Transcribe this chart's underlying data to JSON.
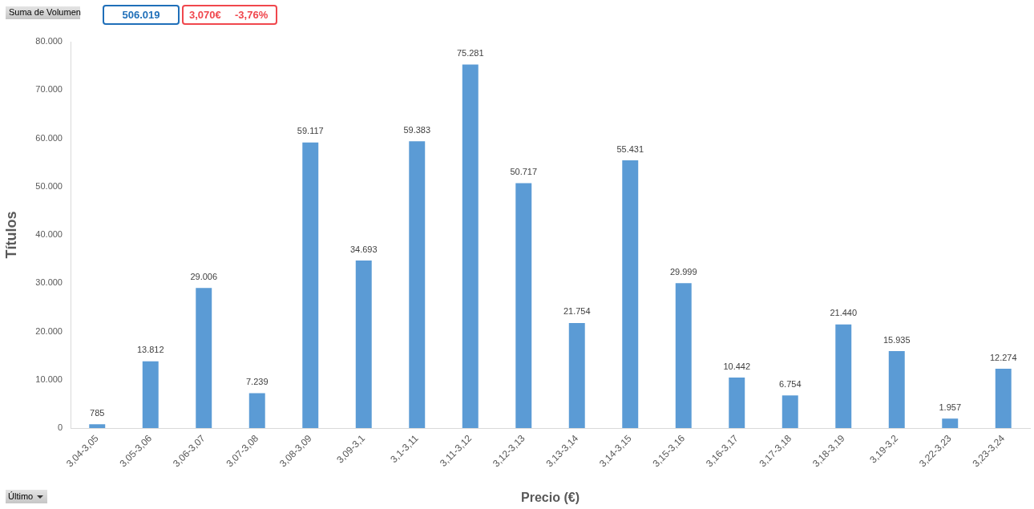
{
  "chart_data": {
    "type": "bar",
    "categories": [
      "3,04-3,05",
      "3,05-3,06",
      "3,06-3,07",
      "3,07-3,08",
      "3,08-3,09",
      "3,09-3,1",
      "3,1-3,11",
      "3,11-3,12",
      "3,12-3,13",
      "3,13-3,14",
      "3,14-3,15",
      "3,15-3,16",
      "3,16-3,17",
      "3,17-3,18",
      "3,18-3,19",
      "3,19-3,2",
      "3,22-3,23",
      "3,23-3,24"
    ],
    "values": [
      785,
      13812,
      29006,
      7239,
      59117,
      34693,
      59383,
      75281,
      50717,
      21754,
      55431,
      29999,
      10442,
      6754,
      21440,
      15935,
      1957,
      12274
    ],
    "value_labels": [
      "785",
      "13.812",
      "29.006",
      "7.239",
      "59.117",
      "34.693",
      "59.383",
      "75.281",
      "50.717",
      "21.754",
      "55.431",
      "29.999",
      "10.442",
      "6.754",
      "21.440",
      "15.935",
      "1.957",
      "12.274"
    ],
    "color": "#5b9bd5",
    "xlabel": "Precio (€)",
    "ylabel": "Títulos",
    "ylim": [
      0,
      80000
    ],
    "yticks": [
      0,
      {
        "value": 10000,
        "label": "10.000"
      },
      {
        "value": 20000,
        "label": "20.000"
      },
      {
        "value": 30000,
        "label": "30.000"
      },
      {
        "value": 40000,
        "label": "40.000"
      },
      {
        "value": 50000,
        "label": "50.000"
      },
      {
        "value": 60000,
        "label": "60.000"
      },
      {
        "value": 70000,
        "label": "70.000"
      },
      {
        "value": 80000,
        "label": "80.000"
      }
    ],
    "annotations": [
      "Suma de Volumen",
      "506.019",
      "3,070€",
      "-3,76%",
      "Último"
    ]
  }
}
